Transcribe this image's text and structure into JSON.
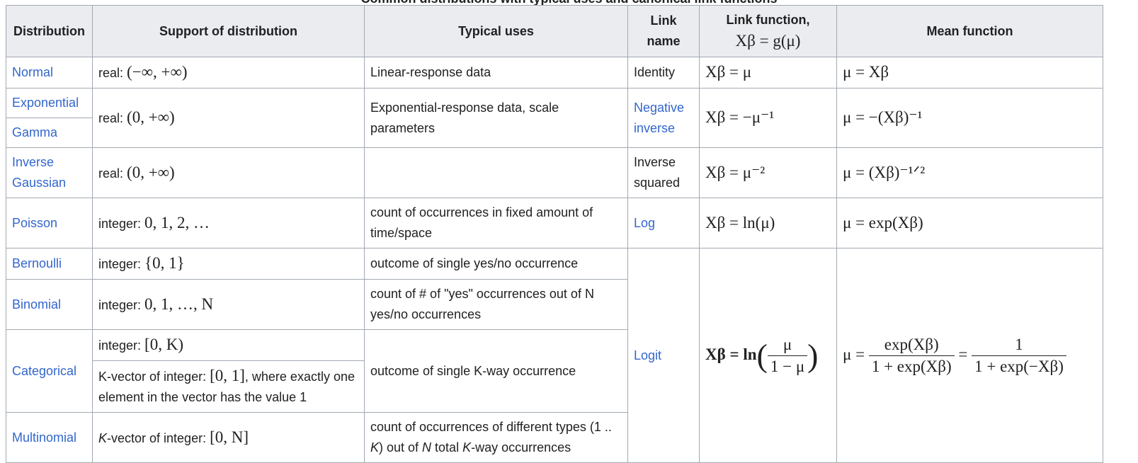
{
  "caption": "Common distributions with typical uses and canonical link functions",
  "headers": {
    "distribution": "Distribution",
    "support": "Support of distribution",
    "uses": "Typical uses",
    "link_name": "Link name",
    "link_function": "Link function,",
    "link_function_math": "Xβ = g(μ)",
    "mean_function": "Mean function"
  },
  "rows": {
    "normal": {
      "name": "Normal",
      "support_prefix": "real: ",
      "support_math": "(−∞, +∞)",
      "uses": "Linear-response data",
      "link_name": "Identity",
      "link": "Xβ = μ",
      "mean": "μ = Xβ"
    },
    "exponential": {
      "name": "Exponential"
    },
    "gamma": {
      "name": "Gamma",
      "support_prefix": "real: ",
      "support_math": "(0, +∞)",
      "uses": "Exponential-response data, scale parameters",
      "link_name": "Negative inverse",
      "link": "Xβ = −μ⁻¹",
      "mean": "μ = −(Xβ)⁻¹"
    },
    "inverse_gaussian": {
      "name": "Inverse Gaussian",
      "support_prefix": "real: ",
      "support_math": "(0, +∞)",
      "uses": "",
      "link_name": "Inverse squared",
      "link": "Xβ = μ⁻²",
      "mean": "μ = (Xβ)⁻¹ᐟ²"
    },
    "poisson": {
      "name": "Poisson",
      "support_prefix": "integer: ",
      "support_math": "0, 1, 2, …",
      "uses": "count of occurrences in fixed amount of time/space",
      "link_name": "Log",
      "link": "Xβ = ln(μ)",
      "mean": "μ = exp(Xβ)"
    },
    "bernoulli": {
      "name": "Bernoulli",
      "support_prefix": "integer: ",
      "support_math": "{0, 1}",
      "uses": "outcome of single yes/no occurrence"
    },
    "binomial": {
      "name": "Binomial",
      "support_prefix": "integer: ",
      "support_math": "0, 1, …, N",
      "uses": "count of # of \"yes\" occurrences out of N yes/no occurrences"
    },
    "categorical": {
      "name": "Categorical",
      "support_a_prefix": "integer: ",
      "support_a_math": "[0, K)",
      "support_b_prefix": "K-vector of integer: ",
      "support_b_math": "[0, 1]",
      "support_b_suffix": ", where exactly one element in the vector has the value 1",
      "uses": "outcome of single K-way occurrence"
    },
    "multinomial": {
      "name": "Multinomial",
      "support_prefix_italic": "K",
      "support_prefix": "-vector of integer: ",
      "support_math": "[0, N]",
      "uses_a": "count of occurrences of different types (1 .. ",
      "uses_k1": "K",
      "uses_b": ") out of ",
      "uses_n": "N",
      "uses_c": " total ",
      "uses_k2": "K",
      "uses_d": "-way occurrences"
    },
    "logit_group": {
      "link_name": "Logit",
      "link_lhs": "Xβ = ln",
      "link_num": "μ",
      "link_den": "1 − μ",
      "mean_lhs": "μ =",
      "mean_num1": "exp(Xβ)",
      "mean_den1": "1 + exp(Xβ)",
      "mean_eq": "=",
      "mean_num2": "1",
      "mean_den2": "1 + exp(−Xβ)"
    }
  }
}
